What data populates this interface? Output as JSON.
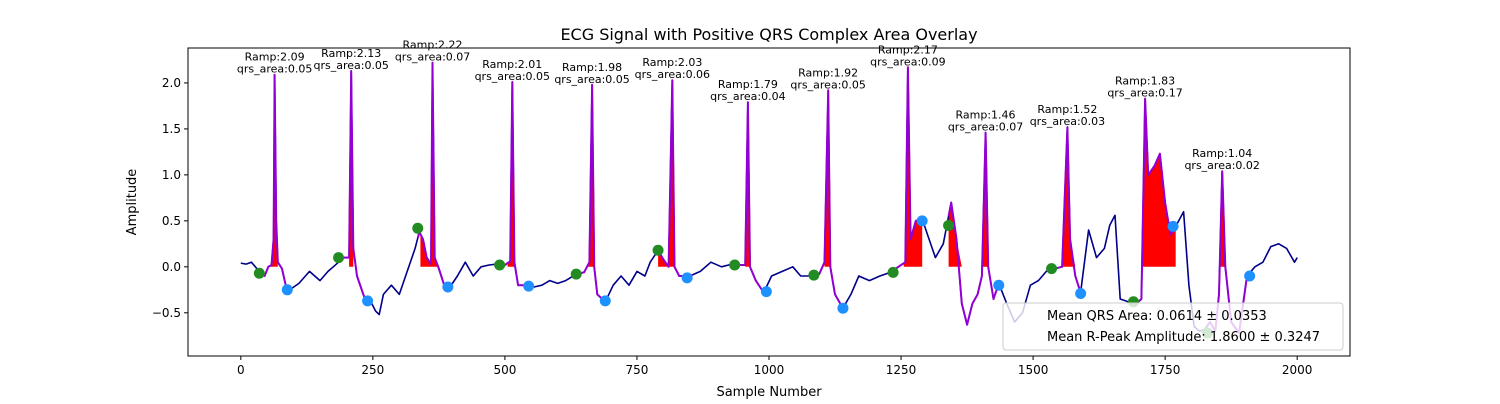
{
  "chart_data": {
    "type": "line",
    "title": "ECG Signal with Positive QRS Complex Area Overlay",
    "xlabel": "Sample Number",
    "ylabel": "Amplitude",
    "xlim": [
      -100,
      2100
    ],
    "ylim": [
      -0.97,
      2.38
    ],
    "x_ticks": [
      0,
      250,
      500,
      750,
      1000,
      1250,
      1500,
      1750,
      2000
    ],
    "y_ticks": [
      -0.5,
      0.0,
      0.5,
      1.0,
      1.5,
      2.0
    ],
    "x_tick_labels": [
      "0",
      "250",
      "500",
      "750",
      "1000",
      "1250",
      "1500",
      "1750",
      "2000"
    ],
    "y_tick_labels": [
      "−0.5",
      "0.0",
      "0.5",
      "1.0",
      "1.5",
      "2.0"
    ],
    "grid": false,
    "colors": {
      "signal": "#00008b",
      "qrs_segment": "#9400d3",
      "qrs_area_fill": "#ff0000",
      "q_marker": "#228b22",
      "s_marker": "#1e90ff"
    },
    "signal_keypoints": [
      [
        0,
        0.04
      ],
      [
        10,
        0.03
      ],
      [
        20,
        0.05
      ],
      [
        35,
        -0.05
      ],
      [
        45,
        -0.1
      ],
      [
        52,
        0.0
      ],
      [
        58,
        0.02
      ],
      [
        62,
        0.3
      ],
      [
        64,
        2.09
      ],
      [
        67,
        0.5
      ],
      [
        70,
        0.05
      ],
      [
        78,
        -0.02
      ],
      [
        85,
        -0.2
      ],
      [
        95,
        -0.24
      ],
      [
        110,
        -0.18
      ],
      [
        130,
        -0.05
      ],
      [
        150,
        -0.15
      ],
      [
        165,
        -0.05
      ],
      [
        175,
        0.0
      ],
      [
        185,
        0.05
      ],
      [
        195,
        0.1
      ],
      [
        205,
        0.1
      ],
      [
        209,
        2.13
      ],
      [
        213,
        0.2
      ],
      [
        220,
        -0.1
      ],
      [
        235,
        -0.35
      ],
      [
        248,
        -0.4
      ],
      [
        255,
        -0.48
      ],
      [
        262,
        -0.52
      ],
      [
        270,
        -0.3
      ],
      [
        285,
        -0.2
      ],
      [
        300,
        -0.3
      ],
      [
        315,
        -0.05
      ],
      [
        330,
        0.2
      ],
      [
        338,
        0.38
      ],
      [
        345,
        0.3
      ],
      [
        352,
        0.1
      ],
      [
        360,
        0.03
      ],
      [
        363,
        2.22
      ],
      [
        367,
        0.1
      ],
      [
        375,
        -0.02
      ],
      [
        385,
        -0.2
      ],
      [
        395,
        -0.23
      ],
      [
        410,
        -0.1
      ],
      [
        425,
        0.05
      ],
      [
        440,
        -0.1
      ],
      [
        455,
        0.0
      ],
      [
        470,
        0.02
      ],
      [
        485,
        0.03
      ],
      [
        500,
        0.02
      ],
      [
        510,
        0.06
      ],
      [
        514,
        2.01
      ],
      [
        518,
        0.05
      ],
      [
        525,
        -0.2
      ],
      [
        540,
        -0.2
      ],
      [
        555,
        -0.22
      ],
      [
        570,
        -0.2
      ],
      [
        585,
        -0.15
      ],
      [
        600,
        -0.18
      ],
      [
        615,
        -0.15
      ],
      [
        635,
        -0.08
      ],
      [
        650,
        -0.06
      ],
      [
        660,
        0.05
      ],
      [
        665,
        1.98
      ],
      [
        669,
        0.0
      ],
      [
        675,
        -0.3
      ],
      [
        690,
        -0.38
      ],
      [
        705,
        -0.2
      ],
      [
        720,
        -0.1
      ],
      [
        735,
        -0.2
      ],
      [
        750,
        -0.05
      ],
      [
        765,
        -0.1
      ],
      [
        775,
        0.05
      ],
      [
        790,
        0.18
      ],
      [
        800,
        0.08
      ],
      [
        810,
        0.0
      ],
      [
        817,
        2.03
      ],
      [
        821,
        0.0
      ],
      [
        830,
        -0.1
      ],
      [
        850,
        -0.1
      ],
      [
        870,
        -0.05
      ],
      [
        890,
        0.05
      ],
      [
        910,
        0.0
      ],
      [
        930,
        0.03
      ],
      [
        945,
        0.02
      ],
      [
        955,
        0.02
      ],
      [
        960,
        1.79
      ],
      [
        964,
        0.0
      ],
      [
        975,
        -0.15
      ],
      [
        990,
        -0.28
      ],
      [
        1005,
        -0.1
      ],
      [
        1025,
        -0.05
      ],
      [
        1045,
        0.0
      ],
      [
        1060,
        -0.1
      ],
      [
        1080,
        -0.1
      ],
      [
        1095,
        -0.08
      ],
      [
        1105,
        0.05
      ],
      [
        1112,
        1.92
      ],
      [
        1116,
        0.0
      ],
      [
        1125,
        -0.3
      ],
      [
        1140,
        -0.45
      ],
      [
        1155,
        -0.3
      ],
      [
        1170,
        -0.1
      ],
      [
        1190,
        -0.15
      ],
      [
        1210,
        -0.1
      ],
      [
        1230,
        -0.06
      ],
      [
        1245,
        0.0
      ],
      [
        1258,
        0.05
      ],
      [
        1263,
        2.17
      ],
      [
        1268,
        0.3
      ],
      [
        1278,
        0.5
      ],
      [
        1290,
        0.52
      ],
      [
        1300,
        0.35
      ],
      [
        1315,
        0.1
      ],
      [
        1330,
        0.25
      ],
      [
        1345,
        0.7
      ],
      [
        1355,
        0.3
      ],
      [
        1365,
        -0.4
      ],
      [
        1375,
        -0.63
      ],
      [
        1385,
        -0.4
      ],
      [
        1395,
        -0.3
      ],
      [
        1403,
        -0.1
      ],
      [
        1410,
        1.46
      ],
      [
        1415,
        0.0
      ],
      [
        1425,
        -0.35
      ],
      [
        1435,
        -0.18
      ],
      [
        1450,
        -0.4
      ],
      [
        1465,
        -0.6
      ],
      [
        1480,
        -0.5
      ],
      [
        1495,
        -0.2
      ],
      [
        1510,
        -0.15
      ],
      [
        1525,
        -0.05
      ],
      [
        1540,
        -0.02
      ],
      [
        1555,
        0.0
      ],
      [
        1565,
        1.52
      ],
      [
        1570,
        0.3
      ],
      [
        1580,
        -0.1
      ],
      [
        1590,
        -0.28
      ],
      [
        1605,
        0.4
      ],
      [
        1620,
        0.1
      ],
      [
        1635,
        0.2
      ],
      [
        1645,
        0.45
      ],
      [
        1655,
        0.56
      ],
      [
        1665,
        -0.35
      ],
      [
        1680,
        -0.38
      ],
      [
        1695,
        -0.4
      ],
      [
        1705,
        -0.35
      ],
      [
        1712,
        1.83
      ],
      [
        1718,
        1.0
      ],
      [
        1730,
        1.1
      ],
      [
        1740,
        1.23
      ],
      [
        1750,
        0.7
      ],
      [
        1760,
        0.35
      ],
      [
        1770,
        0.44
      ],
      [
        1785,
        0.6
      ],
      [
        1795,
        -0.2
      ],
      [
        1805,
        -0.65
      ],
      [
        1815,
        -0.7
      ],
      [
        1825,
        -0.68
      ],
      [
        1835,
        -0.6
      ],
      [
        1845,
        -0.7
      ],
      [
        1852,
        -0.3
      ],
      [
        1858,
        1.04
      ],
      [
        1864,
        0.0
      ],
      [
        1875,
        -0.6
      ],
      [
        1890,
        -0.72
      ],
      [
        1905,
        -0.1
      ],
      [
        1920,
        0.0
      ],
      [
        1935,
        0.05
      ],
      [
        1950,
        0.22
      ],
      [
        1965,
        0.25
      ],
      [
        1980,
        0.2
      ],
      [
        1995,
        0.05
      ],
      [
        2000,
        0.1
      ]
    ],
    "qrs_segments": [
      [
        35,
        95
      ],
      [
        185,
        235
      ],
      [
        335,
        390
      ],
      [
        490,
        540
      ],
      [
        635,
        690
      ],
      [
        790,
        855
      ],
      [
        935,
        995
      ],
      [
        1085,
        1140
      ],
      [
        1235,
        1290
      ],
      [
        1340,
        1435
      ],
      [
        1535,
        1590
      ],
      [
        1690,
        1770
      ],
      [
        1830,
        1910
      ]
    ],
    "qrs_area_fills": [
      [
        55,
        70
      ],
      [
        205,
        213
      ],
      [
        340,
        372
      ],
      [
        505,
        518
      ],
      [
        655,
        669
      ],
      [
        790,
        822
      ],
      [
        955,
        964
      ],
      [
        1105,
        1116
      ],
      [
        1255,
        1290
      ],
      [
        1340,
        1420
      ],
      [
        1555,
        1590
      ],
      [
        1705,
        1770
      ],
      [
        1850,
        1910
      ]
    ],
    "q_points": [
      [
        35,
        -0.07
      ],
      [
        185,
        0.1
      ],
      [
        335,
        0.42
      ],
      [
        490,
        0.02
      ],
      [
        635,
        -0.08
      ],
      [
        790,
        0.18
      ],
      [
        935,
        0.02
      ],
      [
        1085,
        -0.09
      ],
      [
        1235,
        -0.06
      ],
      [
        1340,
        0.45
      ],
      [
        1535,
        -0.02
      ],
      [
        1690,
        -0.38
      ],
      [
        1830,
        -0.72
      ]
    ],
    "s_points": [
      [
        88,
        -0.25
      ],
      [
        240,
        -0.37
      ],
      [
        392,
        -0.22
      ],
      [
        545,
        -0.21
      ],
      [
        690,
        -0.37
      ],
      [
        845,
        -0.12
      ],
      [
        995,
        -0.27
      ],
      [
        1140,
        -0.45
      ],
      [
        1290,
        0.5
      ],
      [
        1435,
        -0.2
      ],
      [
        1590,
        -0.29
      ],
      [
        1765,
        0.44
      ],
      [
        1910,
        -0.1
      ]
    ],
    "annotations": [
      {
        "x": 64,
        "y": 2.09,
        "ramp": "Ramp:2.09",
        "area": "qrs_area:0.05"
      },
      {
        "x": 209,
        "y": 2.13,
        "ramp": "Ramp:2.13",
        "area": "qrs_area:0.05"
      },
      {
        "x": 363,
        "y": 2.22,
        "ramp": "Ramp:2.22",
        "area": "qrs_area:0.07"
      },
      {
        "x": 514,
        "y": 2.01,
        "ramp": "Ramp:2.01",
        "area": "qrs_area:0.05"
      },
      {
        "x": 665,
        "y": 1.98,
        "ramp": "Ramp:1.98",
        "area": "qrs_area:0.05"
      },
      {
        "x": 817,
        "y": 2.03,
        "ramp": "Ramp:2.03",
        "area": "qrs_area:0.06"
      },
      {
        "x": 960,
        "y": 1.79,
        "ramp": "Ramp:1.79",
        "area": "qrs_area:0.04"
      },
      {
        "x": 1112,
        "y": 1.92,
        "ramp": "Ramp:1.92",
        "area": "qrs_area:0.05"
      },
      {
        "x": 1263,
        "y": 2.17,
        "ramp": "Ramp:2.17",
        "area": "qrs_area:0.09"
      },
      {
        "x": 1410,
        "y": 1.46,
        "ramp": "Ramp:1.46",
        "area": "qrs_area:0.07"
      },
      {
        "x": 1565,
        "y": 1.52,
        "ramp": "Ramp:1.52",
        "area": "qrs_area:0.03"
      },
      {
        "x": 1712,
        "y": 1.83,
        "ramp": "Ramp:1.83",
        "area": "qrs_area:0.17"
      },
      {
        "x": 1858,
        "y": 1.04,
        "ramp": "Ramp:1.04",
        "area": "qrs_area:0.02"
      }
    ],
    "legend": {
      "placement": "lower right",
      "entries": [
        "Mean QRS Area: 0.0614 ± 0.0353",
        "Mean R-Peak Amplitude: 1.8600 ± 0.3247"
      ]
    }
  }
}
